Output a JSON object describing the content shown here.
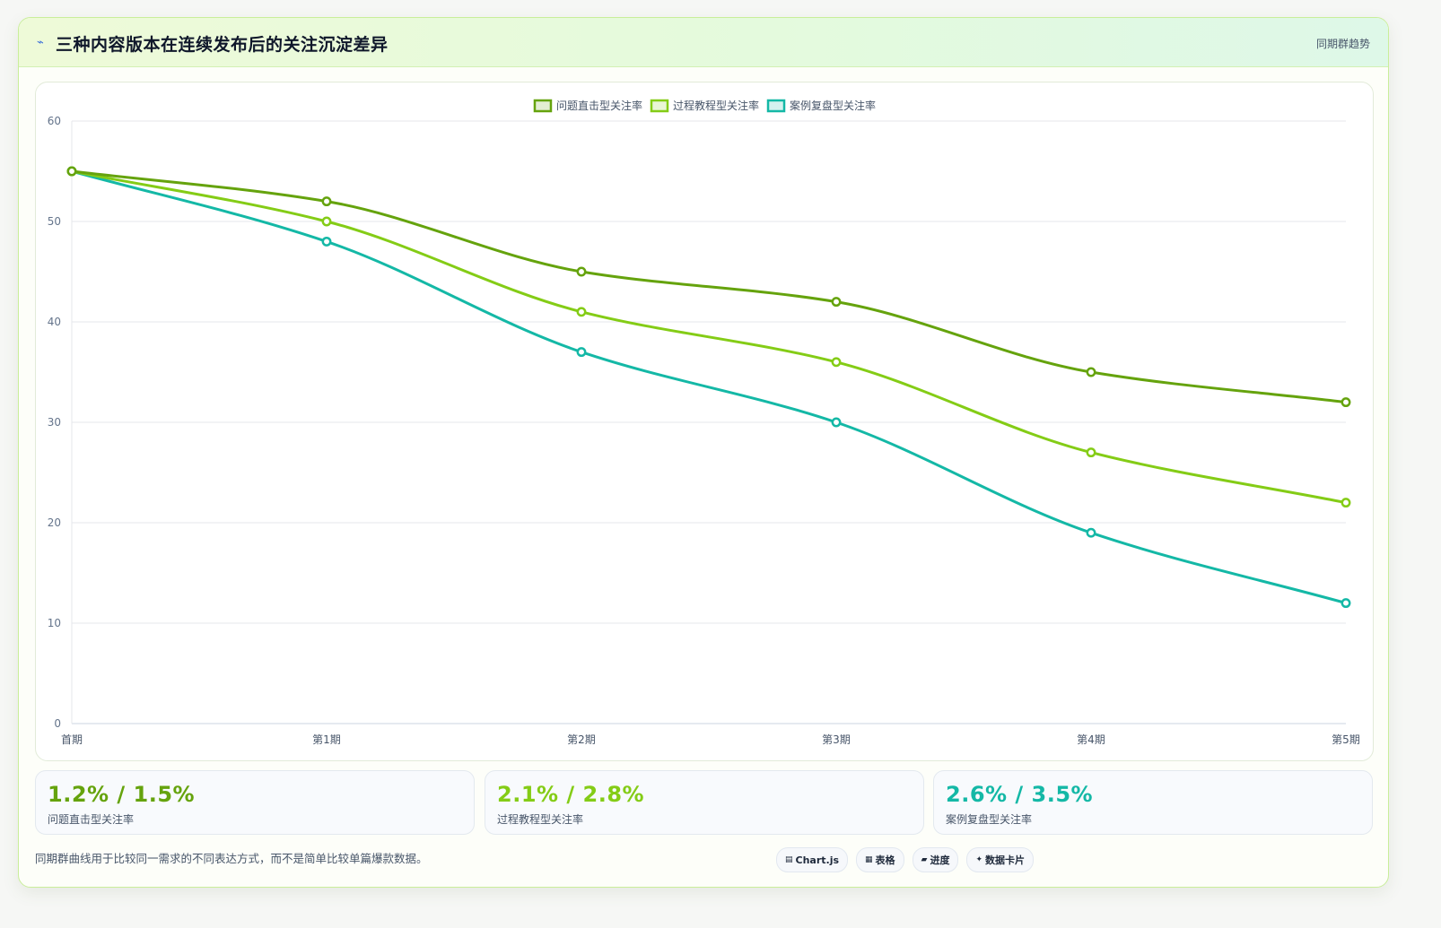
{
  "header": {
    "title_icon": "⌁",
    "title": "三种内容版本在连续发布后的关注沉淀差异",
    "tag": "同期群趋势"
  },
  "chart_data": {
    "type": "line",
    "categories": [
      "首期",
      "第1期",
      "第2期",
      "第3期",
      "第4期",
      "第5期"
    ],
    "series": [
      {
        "name": "问题直击型关注率",
        "color": "#65a30d",
        "values": [
          55,
          52,
          45,
          42,
          35,
          32
        ]
      },
      {
        "name": "过程教程型关注率",
        "color": "#84cc16",
        "values": [
          55,
          50,
          41,
          36,
          27,
          22
        ]
      },
      {
        "name": "案例复盘型关注率",
        "color": "#14b8a6",
        "values": [
          55,
          48,
          37,
          30,
          19,
          12
        ]
      }
    ],
    "ylim": [
      0,
      60
    ],
    "yticks": [
      0,
      10,
      20,
      30,
      40,
      50,
      60
    ],
    "grid": true,
    "legend": "top-center",
    "curve": "smooth",
    "marker": "circle"
  },
  "stats": [
    {
      "value": "1.2% / 1.5%",
      "label": "问题直击型关注率",
      "color": "#65a30d"
    },
    {
      "value": "2.1% / 2.8%",
      "label": "过程教程型关注率",
      "color": "#84cc16"
    },
    {
      "value": "2.6% / 3.5%",
      "label": "案例复盘型关注率",
      "color": "#14b8a6"
    }
  ],
  "footnote": "同期群曲线用于比较同一需求的不同表达方式，而不是简单比较单篇爆款数据。",
  "chips": [
    {
      "icon": "▤",
      "label": "Chart.js"
    },
    {
      "icon": "▦",
      "label": "表格"
    },
    {
      "icon": "▰",
      "label": "进度"
    },
    {
      "icon": "✦",
      "label": "数据卡片"
    }
  ]
}
